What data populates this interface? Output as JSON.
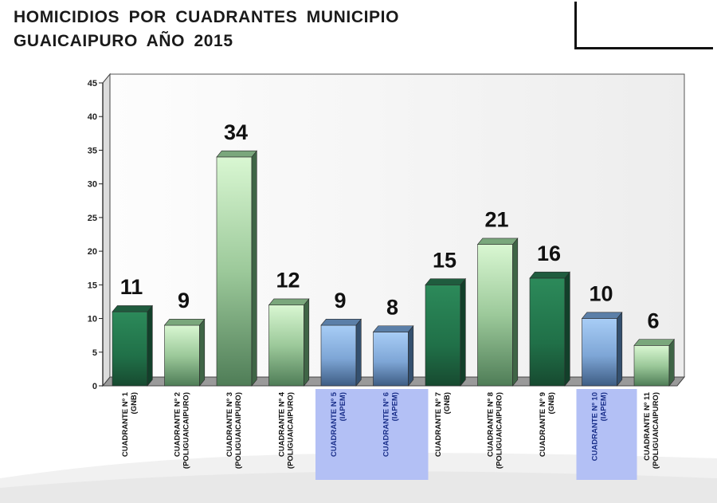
{
  "title": "HOMICIDIOS  POR  CUADRANTES  MUNICIPIO\nGUAICAIPURO  AÑO  2015",
  "colors": {
    "green_dark_top": "#1f6b47",
    "green_dark_mid": "#2e8b5c",
    "green_dark_bottom": "#1a4a33",
    "green_light_top": "#d8f5d0",
    "green_light_bottom": "#4e7a55",
    "blue_top": "#a9cdf5",
    "blue_bottom": "#3f5f85",
    "highlight_label_bg": "#b3c0f5",
    "highlight_label_text": "#1a2f8a"
  },
  "chart_data": {
    "type": "bar",
    "title": "",
    "xlabel": "",
    "ylabel": "",
    "ylim": [
      0,
      45
    ],
    "yticks": [
      0,
      5,
      10,
      15,
      20,
      25,
      30,
      35,
      40,
      45
    ],
    "grid": false,
    "categories": [
      [
        "CUADRANTE Nº 1",
        "(GNB)"
      ],
      [
        "CUADRANTE Nº 2",
        "(POLIGUAICAIPURO)"
      ],
      [
        "CUADRANTE Nº 3",
        "(POLIGUAICAIPURO)"
      ],
      [
        "CUADRANTE Nº 4",
        "(POLIGUAICAIPURO)"
      ],
      [
        "CUADRANTE Nº 5",
        "(IAPEM)"
      ],
      [
        "CUADRANTE Nº 6",
        "(IAPEM)"
      ],
      [
        "CUADRANTE Nº 7",
        "(GNB)"
      ],
      [
        "CUADRANTE Nº 8",
        "(POLIGUAICAIPURO)"
      ],
      [
        "CUADRANTE Nº 9",
        "(GNB)"
      ],
      [
        "CUADRANTE Nº 10",
        "(IAPEM)"
      ],
      [
        "CUADRANTE Nº 11",
        "(POLIGUAICAIPURO)"
      ]
    ],
    "values": [
      11,
      9,
      34,
      12,
      9,
      8,
      15,
      21,
      16,
      10,
      6
    ],
    "bar_styles": [
      "green_dark",
      "green_light",
      "green_light",
      "green_light",
      "blue",
      "blue",
      "green_dark",
      "green_light",
      "green_dark",
      "blue",
      "green_light"
    ],
    "highlighted_categories": [
      4,
      5,
      9
    ]
  }
}
